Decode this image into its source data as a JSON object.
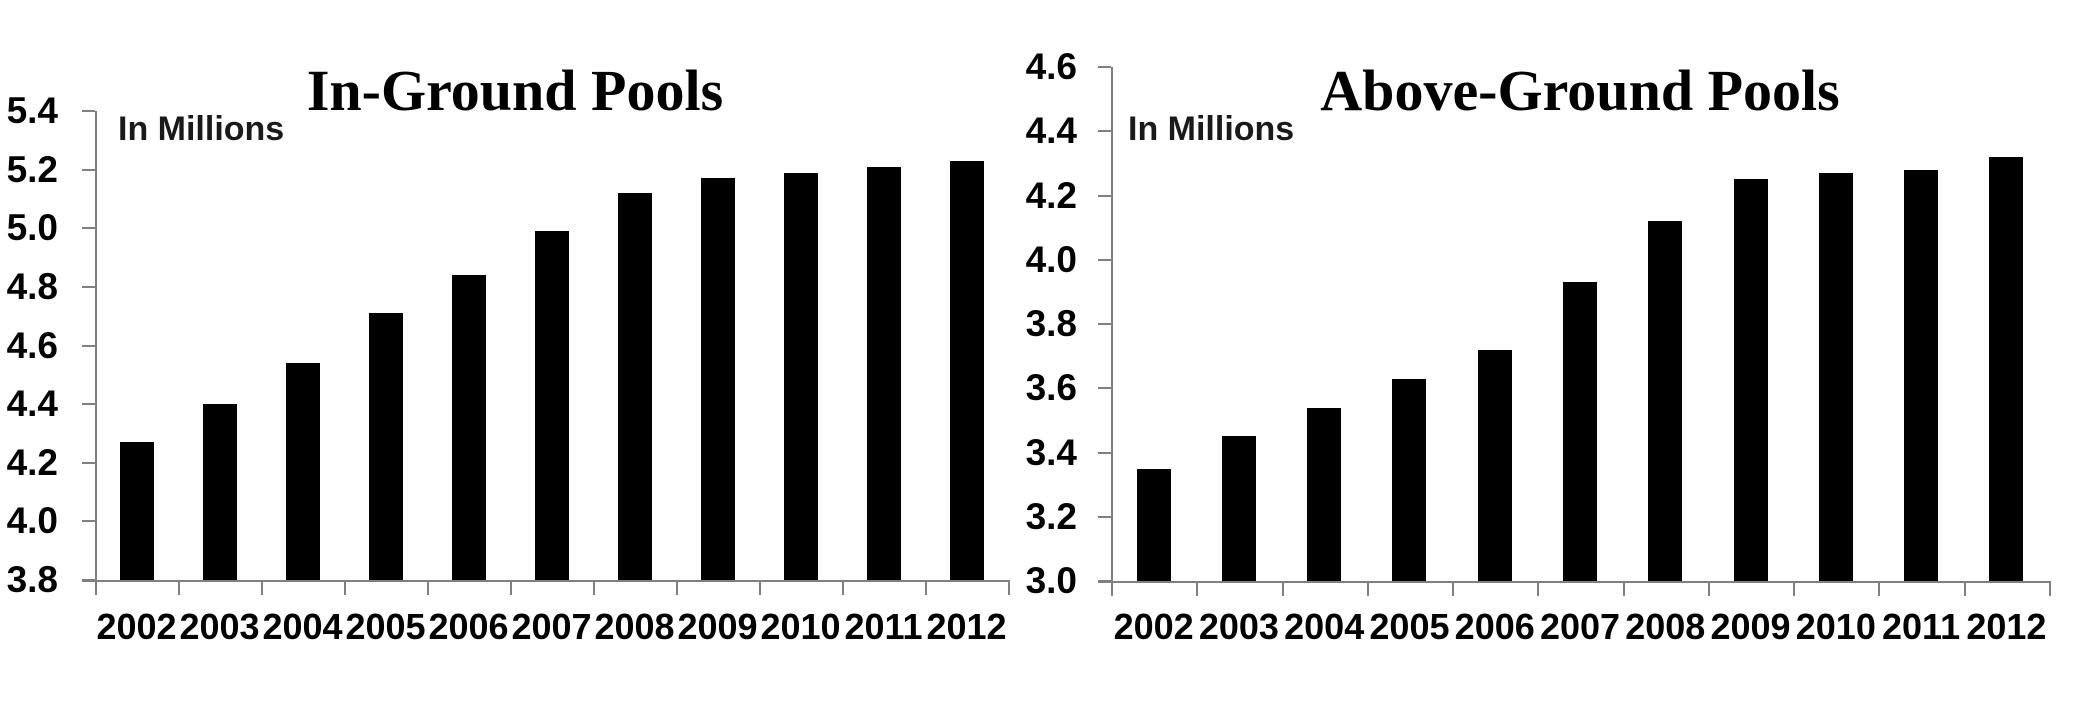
{
  "figure": {
    "background": "#ffffff",
    "bar_color": "#000000",
    "axis_color": "#808080",
    "text_color": "#000000"
  },
  "chart_data": [
    {
      "type": "bar",
      "title": "In-Ground Pools",
      "annotation": "In Millions",
      "categories": [
        "2002",
        "2003",
        "2004",
        "2005",
        "2006",
        "2007",
        "2008",
        "2009",
        "2010",
        "2011",
        "2012"
      ],
      "values": [
        4.27,
        4.4,
        4.54,
        4.71,
        4.84,
        4.99,
        5.12,
        5.17,
        5.19,
        5.21,
        5.23
      ],
      "ylim": [
        3.8,
        5.4
      ],
      "ytick_step": 0.2,
      "ytick_labels": [
        "5.4",
        "5.2",
        "5.0",
        "4.8",
        "4.6",
        "4.4",
        "4.2",
        "4.0",
        "3.8"
      ],
      "xlabel": "",
      "ylabel": "",
      "grid": false,
      "legend": "none",
      "bar_color": "#000000",
      "axis_color": "#808080"
    },
    {
      "type": "bar",
      "title": "Above-Ground Pools",
      "annotation": "In Millions",
      "categories": [
        "2002",
        "2003",
        "2004",
        "2005",
        "2006",
        "2007",
        "2008",
        "2009",
        "2010",
        "2011",
        "2012"
      ],
      "values": [
        3.35,
        3.45,
        3.54,
        3.63,
        3.72,
        3.93,
        4.12,
        4.25,
        4.27,
        4.28,
        4.32
      ],
      "ylim": [
        3.0,
        4.6
      ],
      "ytick_step": 0.2,
      "ytick_labels": [
        "4.6",
        "4.4",
        "4.2",
        "4.0",
        "3.8",
        "3.6",
        "3.4",
        "3.2",
        "3.0"
      ],
      "xlabel": "",
      "ylabel": "",
      "grid": false,
      "legend": "none",
      "bar_color": "#000000",
      "axis_color": "#808080"
    }
  ]
}
